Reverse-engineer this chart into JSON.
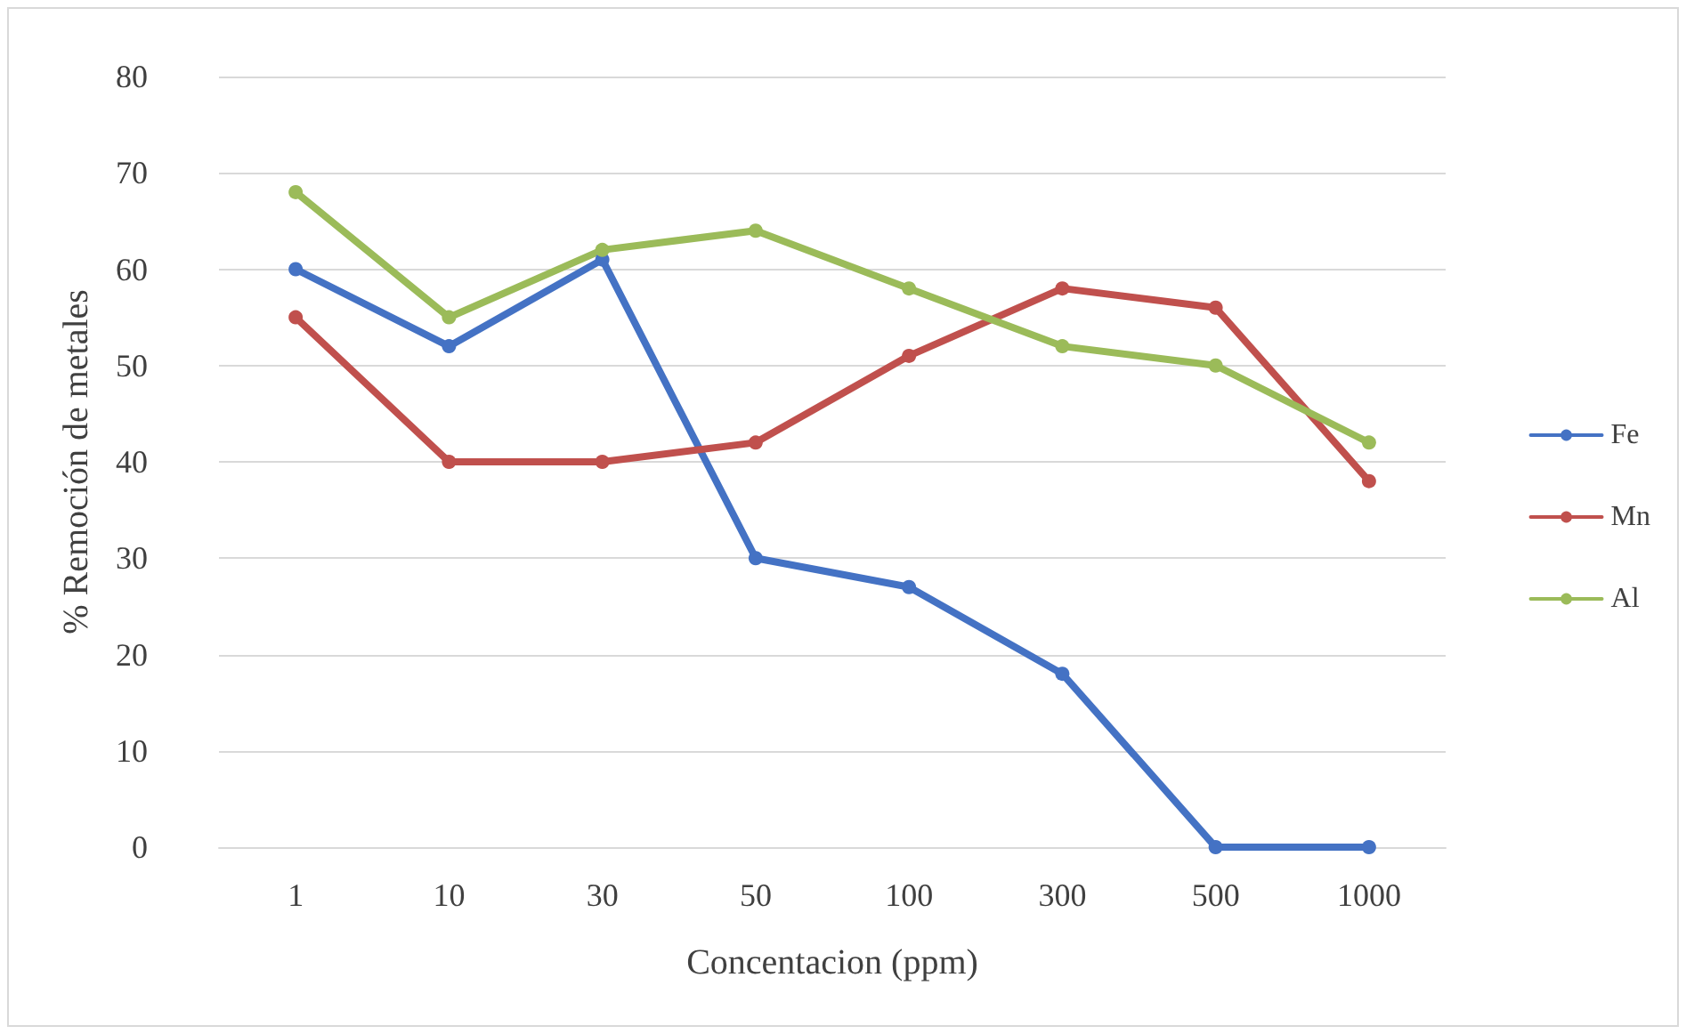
{
  "chart_data": {
    "type": "line",
    "xlabel": "Concentacion (ppm)",
    "ylabel": "% Remoción de metales",
    "categories": [
      "1",
      "10",
      "30",
      "50",
      "100",
      "300",
      "500",
      "1000"
    ],
    "series": [
      {
        "name": "Fe",
        "color": "#4472c4",
        "values": [
          60,
          52,
          61,
          30,
          27,
          18,
          0,
          0
        ]
      },
      {
        "name": "Mn",
        "color": "#c0504d",
        "values": [
          55,
          40,
          40,
          42,
          51,
          58,
          56,
          38
        ]
      },
      {
        "name": "Al",
        "color": "#9bbb59",
        "values": [
          68,
          55,
          62,
          64,
          58,
          52,
          50,
          42
        ]
      }
    ],
    "ylim": [
      0,
      80
    ],
    "yticks": [
      0,
      10,
      20,
      30,
      40,
      50,
      60,
      70,
      80
    ],
    "grid": "y",
    "legend": "right",
    "marker": "circle",
    "line_style": "solid"
  }
}
